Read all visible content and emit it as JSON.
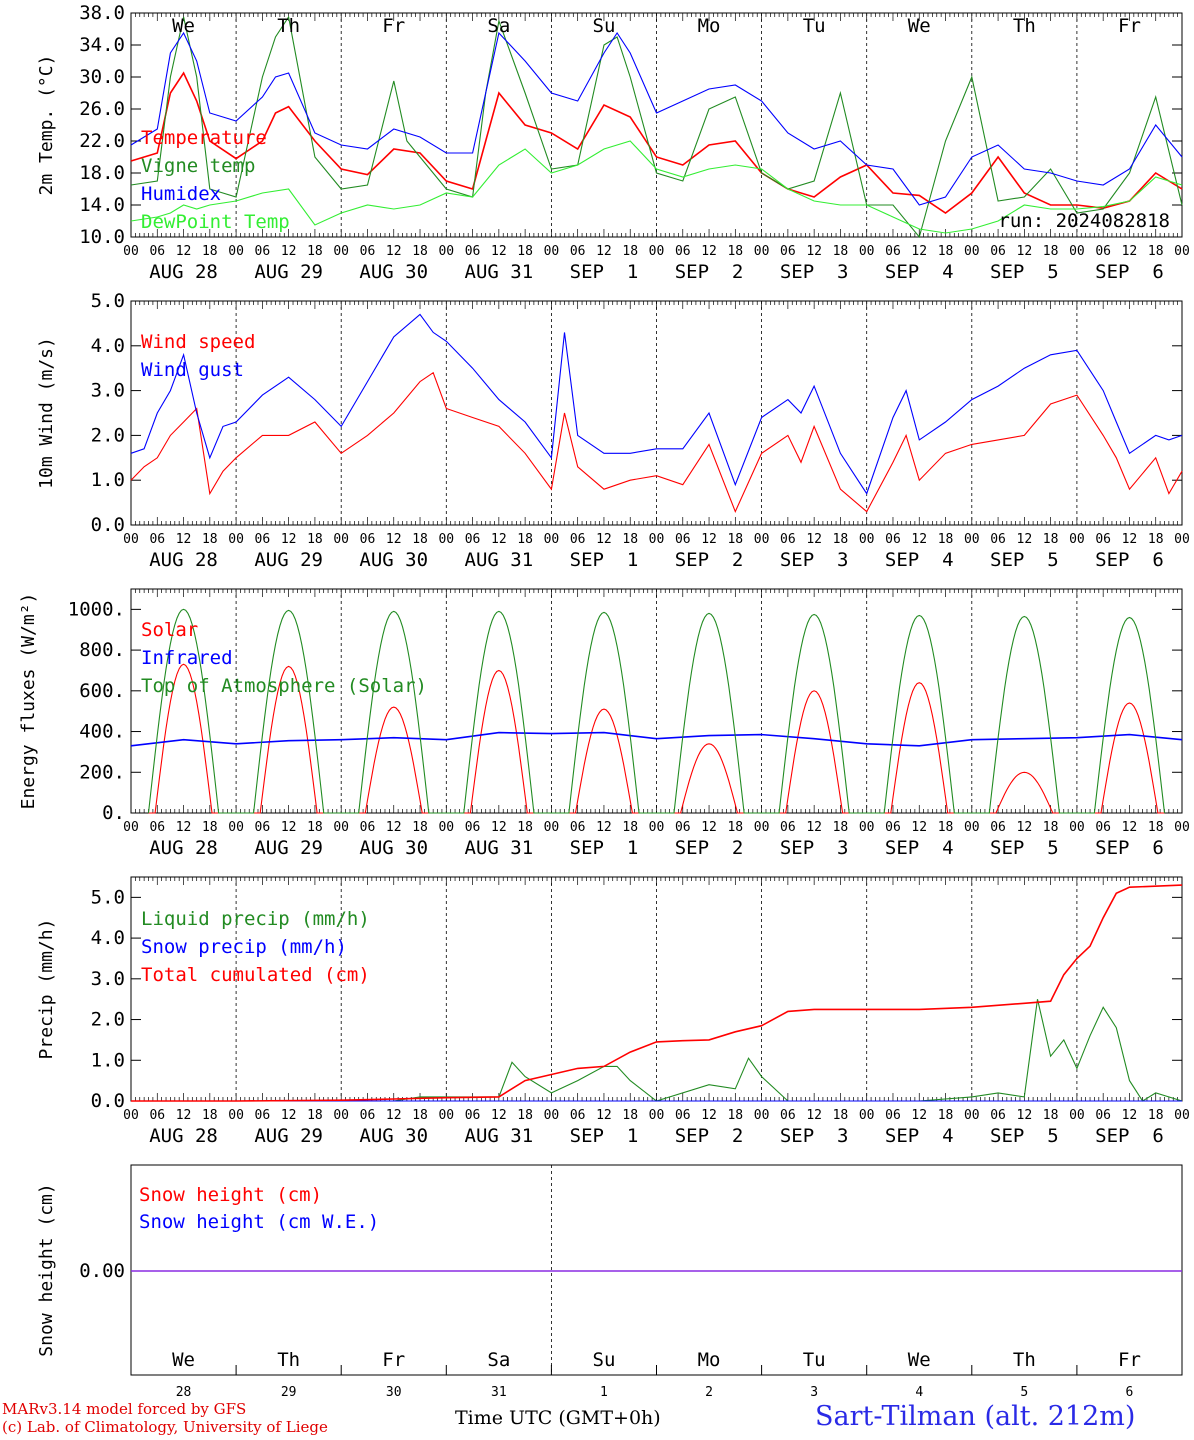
{
  "days": [
    "AUG 28",
    "AUG 29",
    "AUG 30",
    "AUG 31",
    "SEP  1",
    "SEP  2",
    "SEP  3",
    "SEP  4",
    "SEP  5",
    "SEP  6"
  ],
  "weekdays": [
    "We",
    "Th",
    "Fr",
    "Sa",
    "Su",
    "Mo",
    "Tu",
    "We",
    "Th",
    "Fr"
  ],
  "weekday_colors": [
    "#000000",
    "#000000",
    "#000000",
    "#e00000",
    "#e00000",
    "#000000",
    "#000000",
    "#000000",
    "#000000",
    "#000000"
  ],
  "day_numbers": [
    "28",
    "29",
    "30",
    "31",
    "1",
    "2",
    "3",
    "4",
    "5",
    "6"
  ],
  "hour_ticks": [
    "00",
    "06",
    "12",
    "18"
  ],
  "run_label": "run: 2024082818",
  "x_title": "Time UTC (GMT+0h)",
  "footer": {
    "line1": "MARv3.14 model forced by GFS",
    "line2": "(c) Lab. of Climatology, University of Liege"
  },
  "station": "Sart-Tilman (alt. 212m)",
  "chart_data": [
    {
      "type": "line",
      "ylabel": "2m Temp. (°C)",
      "ylim": [
        10,
        38
      ],
      "yticks": [
        "10.0",
        "14.0",
        "18.0",
        "22.0",
        "26.0",
        "30.0",
        "34.0",
        "38.0"
      ],
      "x_unit": "hours since 2024-08-28 00 UTC",
      "series": [
        {
          "name": "Temperature",
          "color": "#ff0000",
          "x": [
            0,
            6,
            9,
            12,
            15,
            18,
            24,
            30,
            33,
            36,
            42,
            48,
            54,
            60,
            66,
            72,
            78,
            81,
            84,
            90,
            96,
            102,
            108,
            114,
            120,
            126,
            132,
            138,
            144,
            150,
            156,
            162,
            168,
            174,
            180,
            186,
            192,
            198,
            204,
            210,
            216,
            222,
            228,
            234,
            240
          ],
          "values": [
            19.5,
            20.5,
            28,
            30.5,
            27,
            22,
            19.8,
            22,
            25.5,
            26.3,
            22,
            18.5,
            17.8,
            21,
            20.5,
            17,
            16,
            22,
            28,
            24,
            23,
            21,
            26.5,
            25,
            20,
            19,
            21.5,
            22,
            18,
            16,
            15,
            17.5,
            19,
            15.5,
            15.2,
            13,
            15.5,
            20,
            15.5,
            14,
            14,
            13.6,
            14.5,
            18,
            16
          ]
        },
        {
          "name": "Vigne temp",
          "color": "#228b22",
          "x": [
            0,
            6,
            9,
            12,
            15,
            18,
            24,
            30,
            33,
            36,
            42,
            48,
            54,
            60,
            63,
            66,
            72,
            78,
            81,
            84,
            90,
            96,
            102,
            108,
            111,
            114,
            120,
            126,
            132,
            138,
            144,
            150,
            156,
            162,
            168,
            174,
            180,
            186,
            192,
            198,
            204,
            210,
            216,
            222,
            228,
            234,
            240
          ],
          "values": [
            16.5,
            17,
            30,
            37.5,
            30,
            16,
            15,
            30,
            35,
            37.5,
            20,
            16,
            16.5,
            29.5,
            22,
            20,
            16,
            15,
            28,
            37,
            28,
            18.5,
            19,
            34,
            35,
            30,
            18,
            17,
            26,
            27.5,
            18,
            16,
            17,
            28,
            14,
            14,
            10,
            22,
            30,
            14.5,
            15,
            18.5,
            13,
            13.5,
            18,
            27.5,
            14
          ]
        },
        {
          "name": "Humidex",
          "color": "#0000ff",
          "x": [
            0,
            6,
            9,
            12,
            15,
            18,
            24,
            30,
            33,
            36,
            42,
            48,
            54,
            60,
            66,
            72,
            78,
            81,
            84,
            90,
            96,
            102,
            108,
            111,
            114,
            120,
            126,
            132,
            138,
            144,
            150,
            156,
            162,
            168,
            174,
            180,
            186,
            192,
            198,
            204,
            210,
            216,
            222,
            228,
            234,
            240
          ],
          "values": [
            21.5,
            23.5,
            33,
            35.5,
            32,
            25.5,
            24.5,
            27.5,
            30,
            30.5,
            23,
            21.5,
            21,
            23.5,
            22.5,
            20.5,
            20.5,
            28,
            35.5,
            32,
            28,
            27,
            33,
            35.5,
            33,
            25.5,
            27,
            28.5,
            29,
            27,
            23,
            21,
            22,
            19,
            18.5,
            14,
            15,
            20,
            21.5,
            18.5,
            18,
            17,
            16.5,
            18.5,
            24,
            20
          ]
        },
        {
          "name": "DewPoint Temp",
          "color": "#33ee33",
          "x": [
            0,
            6,
            9,
            12,
            15,
            18,
            24,
            30,
            36,
            42,
            48,
            54,
            60,
            66,
            72,
            78,
            84,
            90,
            96,
            102,
            108,
            114,
            120,
            126,
            132,
            138,
            144,
            150,
            156,
            162,
            168,
            174,
            180,
            186,
            192,
            198,
            204,
            210,
            216,
            222,
            228,
            234,
            240
          ],
          "values": [
            12,
            12.5,
            13,
            14,
            13.5,
            14,
            14.5,
            15.5,
            16,
            11.5,
            13,
            14,
            13.5,
            14,
            15.5,
            15,
            19,
            21,
            18,
            19,
            21,
            22,
            18.5,
            17.5,
            18.5,
            19,
            18.5,
            16,
            14.5,
            14,
            14,
            12.5,
            11,
            10.5,
            11,
            12,
            14,
            13.5,
            13.5,
            13.8,
            14.5,
            17.5,
            16.5
          ]
        }
      ]
    },
    {
      "type": "line",
      "ylabel": "10m Wind (m/s)",
      "ylim": [
        0,
        5
      ],
      "yticks": [
        "0.0",
        "1.0",
        "2.0",
        "3.0",
        "4.0",
        "5.0"
      ],
      "series": [
        {
          "name": "Wind speed",
          "color": "#ff0000",
          "x": [
            0,
            3,
            6,
            9,
            12,
            15,
            18,
            21,
            24,
            30,
            36,
            42,
            48,
            54,
            60,
            66,
            69,
            72,
            78,
            84,
            90,
            96,
            99,
            102,
            108,
            114,
            120,
            126,
            132,
            138,
            144,
            150,
            153,
            156,
            162,
            168,
            174,
            177,
            180,
            186,
            192,
            198,
            204,
            210,
            216,
            222,
            225,
            228,
            234,
            237,
            240
          ],
          "values": [
            1.0,
            1.3,
            1.5,
            2.0,
            2.3,
            2.6,
            0.7,
            1.2,
            1.5,
            2.0,
            2.0,
            2.3,
            1.6,
            2.0,
            2.5,
            3.2,
            3.4,
            2.6,
            2.4,
            2.2,
            1.6,
            0.8,
            2.5,
            1.3,
            0.8,
            1.0,
            1.1,
            0.9,
            1.8,
            0.3,
            1.6,
            2.0,
            1.4,
            2.2,
            0.8,
            0.3,
            1.4,
            2.0,
            1.0,
            1.6,
            1.8,
            1.9,
            2.0,
            2.7,
            2.9,
            2.0,
            1.5,
            0.8,
            1.5,
            0.7,
            1.2
          ]
        },
        {
          "name": "Wind gust",
          "color": "#0000ff",
          "x": [
            0,
            3,
            6,
            9,
            12,
            15,
            18,
            21,
            24,
            30,
            36,
            42,
            48,
            54,
            60,
            66,
            69,
            72,
            78,
            84,
            90,
            96,
            99,
            102,
            108,
            114,
            120,
            126,
            132,
            138,
            144,
            150,
            153,
            156,
            162,
            168,
            174,
            177,
            180,
            186,
            192,
            198,
            204,
            210,
            216,
            222,
            225,
            228,
            234,
            237,
            240
          ],
          "values": [
            1.6,
            1.7,
            2.5,
            3.0,
            3.8,
            2.5,
            1.5,
            2.2,
            2.3,
            2.9,
            3.3,
            2.8,
            2.2,
            3.2,
            4.2,
            4.7,
            4.3,
            4.1,
            3.5,
            2.8,
            2.3,
            1.5,
            4.3,
            2.0,
            1.6,
            1.6,
            1.7,
            1.7,
            2.5,
            0.9,
            2.4,
            2.8,
            2.5,
            3.1,
            1.6,
            0.7,
            2.4,
            3.0,
            1.9,
            2.3,
            2.8,
            3.1,
            3.5,
            3.8,
            3.9,
            3.0,
            2.3,
            1.6,
            2.0,
            1.9,
            2.0
          ]
        }
      ]
    },
    {
      "type": "line",
      "ylabel": "Energy fluxes (W/m²)",
      "ylim": [
        0,
        1100
      ],
      "yticks": [
        "0.",
        "200.",
        "400.",
        "600.",
        "800.",
        "1000."
      ],
      "series": [
        {
          "name": "Solar",
          "color": "#ff0000",
          "peaks": [
            730,
            720,
            520,
            700,
            510,
            340,
            600,
            640,
            200,
            540
          ]
        },
        {
          "name": "Infrared",
          "color": "#0000ff",
          "x": [
            0,
            12,
            24,
            36,
            48,
            60,
            72,
            84,
            96,
            108,
            120,
            132,
            144,
            156,
            168,
            180,
            192,
            204,
            216,
            228,
            240
          ],
          "values": [
            330,
            360,
            340,
            355,
            360,
            370,
            360,
            395,
            390,
            395,
            365,
            380,
            385,
            365,
            340,
            330,
            360,
            365,
            370,
            385,
            360
          ]
        },
        {
          "name": "Top of Atmosphere (Solar)",
          "color": "#228b22",
          "peaks": [
            1000,
            995,
            990,
            990,
            985,
            980,
            975,
            970,
            965,
            960
          ]
        }
      ]
    },
    {
      "type": "line",
      "ylabel": "Precip (mm/h)",
      "ylim": [
        0,
        5.5
      ],
      "yticks": [
        "0.0",
        "1.0",
        "2.0",
        "3.0",
        "4.0",
        "5.0"
      ],
      "series": [
        {
          "name": "Liquid precip (mm/h)",
          "color": "#228b22",
          "x": [
            0,
            12,
            24,
            60,
            66,
            84,
            87,
            90,
            96,
            102,
            108,
            111,
            114,
            120,
            132,
            138,
            141,
            144,
            150,
            180,
            192,
            198,
            204,
            207,
            210,
            213,
            216,
            219,
            222,
            225,
            228,
            231,
            234,
            240
          ],
          "values": [
            0,
            0,
            0,
            0,
            0.1,
            0.1,
            0.95,
            0.6,
            0.2,
            0.5,
            0.85,
            0.85,
            0.5,
            0,
            0.4,
            0.3,
            1.05,
            0.6,
            0,
            0,
            0.1,
            0.2,
            0.1,
            2.5,
            1.1,
            1.5,
            0.8,
            1.6,
            2.3,
            1.8,
            0.5,
            0,
            0.2,
            0
          ]
        },
        {
          "name": "Snow precip (mm/h)",
          "color": "#0000ff",
          "x": [
            0,
            240
          ],
          "values": [
            0,
            0
          ]
        },
        {
          "name": "Total cumulated (cm)",
          "color": "#ff0000",
          "x": [
            0,
            24,
            48,
            60,
            72,
            84,
            90,
            96,
            102,
            108,
            114,
            120,
            126,
            132,
            138,
            144,
            150,
            156,
            168,
            180,
            192,
            204,
            210,
            213,
            216,
            219,
            222,
            225,
            228,
            240
          ],
          "values": [
            0,
            0,
            0.02,
            0.05,
            0.08,
            0.1,
            0.5,
            0.65,
            0.8,
            0.85,
            1.2,
            1.45,
            1.48,
            1.5,
            1.7,
            1.85,
            2.2,
            2.25,
            2.25,
            2.25,
            2.3,
            2.4,
            2.45,
            3.1,
            3.5,
            3.8,
            4.5,
            5.1,
            5.25,
            5.3
          ]
        }
      ]
    },
    {
      "type": "line",
      "ylabel": "Snow height (cm)",
      "yticks": [
        "0.00"
      ],
      "series": [
        {
          "name": "Snow height (cm)",
          "color": "#ff0000",
          "x": [
            0,
            240
          ],
          "values": [
            0,
            0
          ]
        },
        {
          "name": "Snow height (cm W.E.)",
          "color": "#0000ff",
          "x": [
            0,
            240
          ],
          "values": [
            0,
            0
          ]
        }
      ]
    }
  ]
}
